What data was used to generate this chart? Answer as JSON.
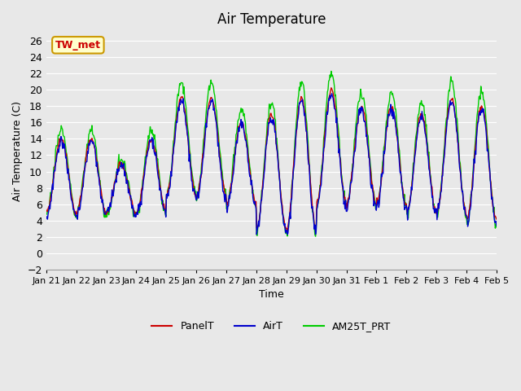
{
  "title": "Air Temperature",
  "xlabel": "Time",
  "ylabel": "Air Temperature (C)",
  "ylim": [
    -2,
    27
  ],
  "yticks": [
    -2,
    0,
    2,
    4,
    6,
    8,
    10,
    12,
    14,
    16,
    18,
    20,
    22,
    24,
    26
  ],
  "bg_color": "#e8e8e8",
  "plot_bg_color": "#e8e8e8",
  "legend_labels": [
    "PanelT",
    "AirT",
    "AM25T_PRT"
  ],
  "legend_colors": [
    "#cc0000",
    "#0000cc",
    "#00cc00"
  ],
  "station_label": "TW_met",
  "station_label_color": "#cc0000",
  "station_box_color": "#ffffcc",
  "station_box_edge": "#cc9900",
  "x_tick_labels": [
    "Jan 21",
    "Jan 22",
    "Jan 23",
    "Jan 24",
    "Jan 25",
    "Jan 26",
    "Jan 27",
    "Jan 28",
    "Jan 29",
    "Jan 30",
    "Jan 31",
    "Feb 1",
    "Feb 2",
    "Feb 3",
    "Feb 4",
    "Feb 5"
  ],
  "num_days": 15,
  "points_per_day": 48
}
